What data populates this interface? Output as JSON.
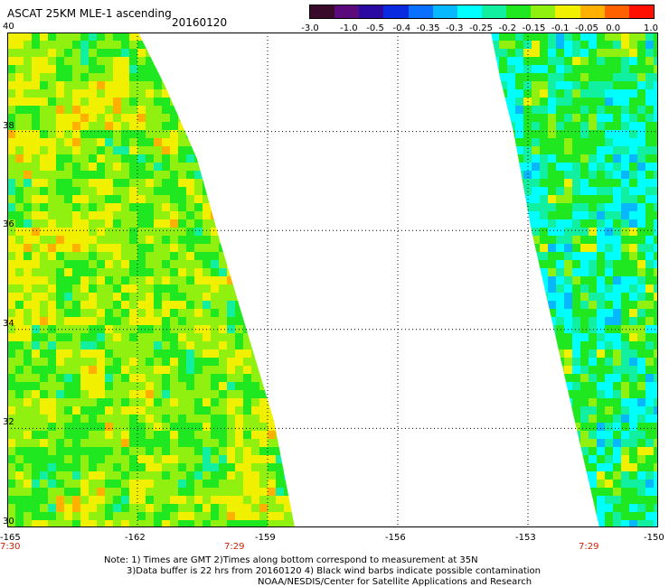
{
  "header": {
    "title": "ASCAT 25KM MLE-1 ascending",
    "date": "20160120"
  },
  "colorbar": {
    "colors": [
      "#3a0a2a",
      "#5a0a7a",
      "#2a0aa0",
      "#0a2ae0",
      "#0a70ff",
      "#08b8ff",
      "#00ffff",
      "#10f0a0",
      "#20e820",
      "#90f010",
      "#f0f000",
      "#ffb000",
      "#ff6000",
      "#ff1000"
    ],
    "labels": [
      "-3.0",
      "-1.0",
      "-0.5",
      "-0.4",
      "-0.35",
      "-0.3",
      "-0.25",
      "-0.2",
      "-0.15",
      "-0.1",
      "-0.05",
      "0.0",
      "1.0"
    ]
  },
  "map": {
    "lon_range": [
      -165,
      -150
    ],
    "lat_range": [
      30,
      40
    ],
    "x_ticks": [
      "-165",
      "-162",
      "-159",
      "-156",
      "-153",
      "-150"
    ],
    "y_ticks": [
      "40",
      "38",
      "36",
      "34",
      "32",
      "30"
    ],
    "time_labels": [
      "7:30",
      "7:29",
      "7:29"
    ]
  },
  "notes": {
    "line1": "Note: 1) Times are GMT 2)Times along bottom correspond to measurement at 35N",
    "line2": "3)Data buffer is 22 hrs from 20160120 4) Black wind barbs indicate possible contamination",
    "line3": "NOAA/NESDIS/Center for Satellite Applications and Research"
  }
}
